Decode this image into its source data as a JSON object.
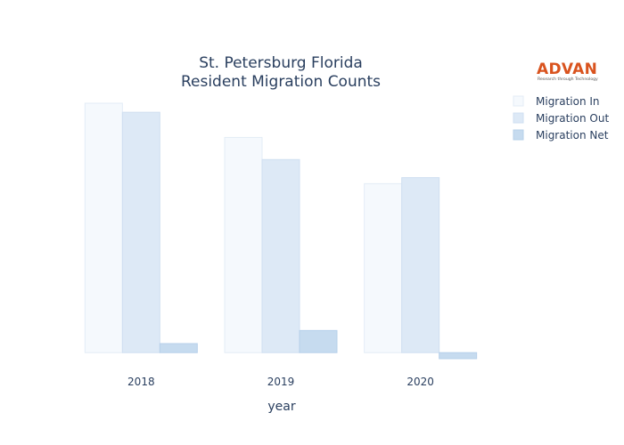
{
  "logo": {
    "name": "ADVAN",
    "tagline": "Research through Technology",
    "color": "#d9531e"
  },
  "chart_data": {
    "type": "bar",
    "title_lines": [
      "St. Petersburg Florida",
      "Resident Migration Counts"
    ],
    "xlabel": "year",
    "ylabel": "",
    "categories": [
      "2018",
      "2019",
      "2020"
    ],
    "series": [
      {
        "name": "Migration In",
        "values": [
          1240,
          1070,
          840
        ],
        "color": "#f5f9fd",
        "stroke": "#e3ecf6"
      },
      {
        "name": "Migration Out",
        "values": [
          1195,
          960,
          870
        ],
        "color": "#dde9f6",
        "stroke": "#cfdff1"
      },
      {
        "name": "Migration Net",
        "values": [
          45,
          110,
          -30
        ],
        "color": "#c6dbef",
        "stroke": "#b7d0ea"
      }
    ],
    "ylim": [
      -30,
      1240
    ],
    "grid": false,
    "legend_position": "top-right"
  }
}
